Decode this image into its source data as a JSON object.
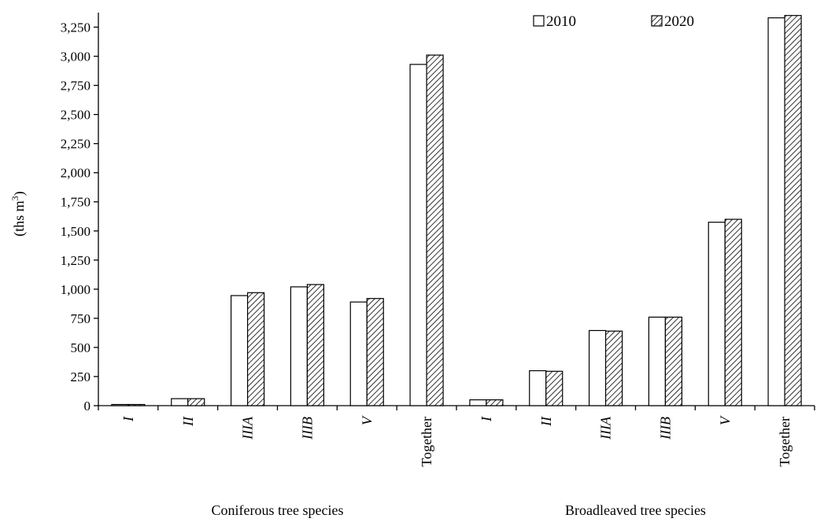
{
  "chart_data": {
    "type": "bar",
    "ylabel_main": "(ths m",
    "ylabel_sup": "3",
    "ylabel_end": ")",
    "ylim": [
      0,
      3375
    ],
    "yticks": [
      0,
      250,
      500,
      750,
      1000,
      1250,
      1500,
      1750,
      2000,
      2250,
      2500,
      2750,
      3000,
      3250
    ],
    "ytick_labels": [
      "0",
      "250",
      "500",
      "750",
      "1,000",
      "1,250",
      "1,500",
      "1,750",
      "2,000",
      "2,250",
      "2,500",
      "2,750",
      "3,000",
      "3,250"
    ],
    "grid": false,
    "legend_position": "top-right",
    "groups": [
      {
        "label": "Coniferous tree species",
        "categories": [
          "I",
          "II",
          "IIIA",
          "IIIB",
          "V",
          "Together"
        ]
      },
      {
        "label": "Broadleaved tree species",
        "categories": [
          "I",
          "II",
          "IIIA",
          "IIIB",
          "V",
          "Together"
        ]
      }
    ],
    "categories": [
      "I",
      "II",
      "IIIA",
      "IIIB",
      "V",
      "Together",
      "I",
      "II",
      "IIIA",
      "IIIB",
      "V",
      "Together"
    ],
    "series": [
      {
        "name": "2010",
        "fill": "plain",
        "values": [
          10,
          60,
          945,
          1020,
          890,
          2930,
          50,
          300,
          645,
          760,
          1575,
          3330
        ]
      },
      {
        "name": "2020",
        "fill": "hatched",
        "values": [
          10,
          60,
          970,
          1040,
          920,
          3010,
          50,
          295,
          640,
          760,
          1600,
          3350
        ]
      }
    ]
  },
  "colors": {
    "bar_plain": "#ffffff",
    "bar_stroke": "#000000",
    "hatch": "#000000"
  }
}
